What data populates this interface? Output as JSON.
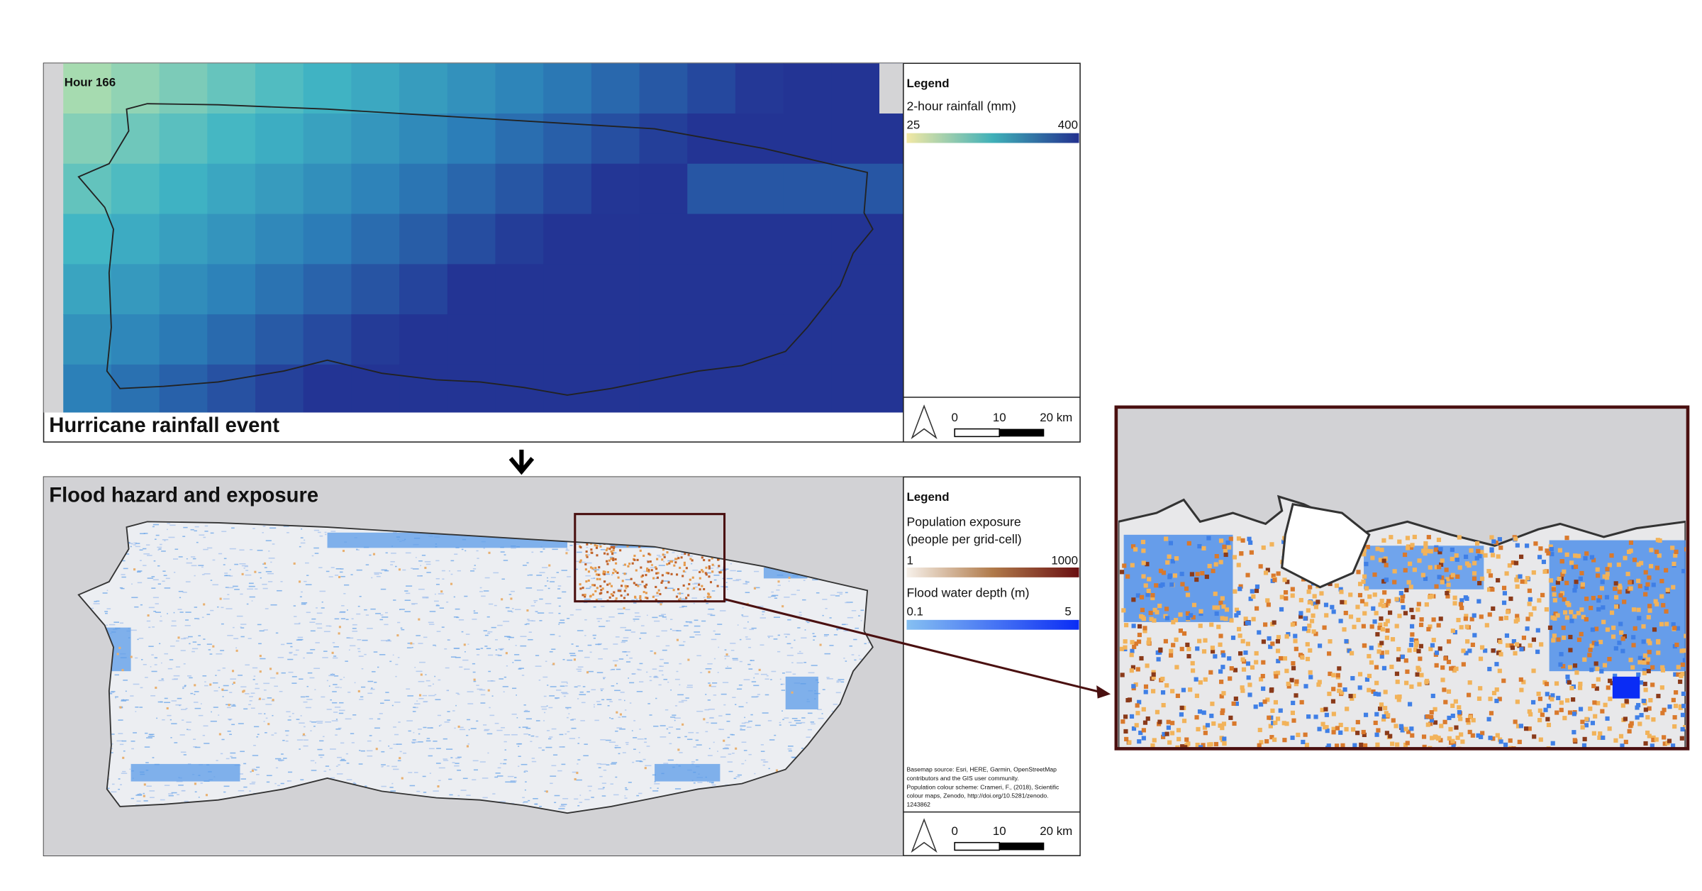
{
  "rainfall_panel": {
    "label": "Hour 166",
    "title": "Hurricane rainfall event",
    "legend": {
      "heading": "Legend",
      "title": "2-hour rainfall (mm)",
      "min": "25",
      "max": "400"
    },
    "scale_bar": [
      "0",
      "10",
      "20 km"
    ]
  },
  "flood_panel": {
    "title": "Flood hazard and exposure",
    "legend": {
      "heading": "Legend",
      "population": {
        "title": [
          "Population exposure",
          "(people per grid-cell)"
        ],
        "min": "1",
        "max": "1000"
      },
      "depth": {
        "title": "Flood water depth (m)",
        "min": "0.1",
        "max": "5"
      }
    },
    "credits": [
      "Basemap source: Esri, HERE, Garmin, OpenStreetMap",
      "contributors and the GIS user community.",
      "Population colour scheme: Crameri, F., (2018), Scientific",
      "colour maps, Zenodo, http://doi.org/10.5281/zenodo.",
      "1243862"
    ],
    "scale_bar": [
      "0",
      "10",
      "20 km"
    ]
  }
}
